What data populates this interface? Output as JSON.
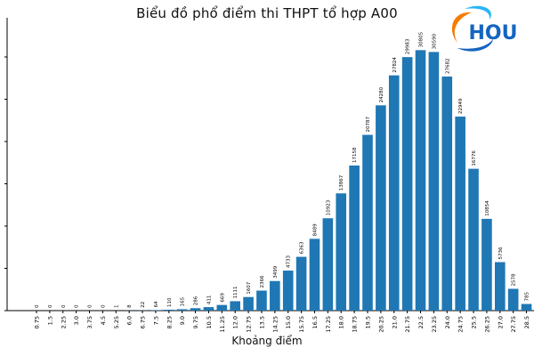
{
  "chart_data": {
    "type": "bar",
    "title": "Biểu đồ phổ điểm thi THPT tổ hợp A00",
    "xlabel": "Khoảng điểm",
    "ylabel": "",
    "categories": [
      "0.75",
      "1.5",
      "2.25",
      "3.0",
      "3.75",
      "4.5",
      "5.25",
      "6.0",
      "6.75",
      "7.5",
      "8.25",
      "9.0",
      "9.75",
      "10.5",
      "11.25",
      "12.0",
      "12.75",
      "13.5",
      "14.25",
      "15.0",
      "15.75",
      "16.5",
      "17.25",
      "18.0",
      "18.75",
      "19.5",
      "20.25",
      "21.0",
      "21.75",
      "22.5",
      "23.25",
      "24.0",
      "24.75",
      "25.5",
      "26.25",
      "27.0",
      "27.75",
      "28.5"
    ],
    "values": [
      0,
      0,
      0,
      0,
      0,
      0,
      1,
      8,
      22,
      64,
      110,
      165,
      286,
      411,
      669,
      1111,
      1607,
      2366,
      3499,
      4733,
      6363,
      8489,
      10923,
      13867,
      17158,
      20787,
      24280,
      27824,
      29983,
      30805,
      30590,
      27682,
      22949,
      16776,
      10854,
      5736,
      2578,
      785
    ],
    "ylim": [
      0,
      34000
    ],
    "bar_color": "#1f77b4",
    "grid": false,
    "legend": "none"
  },
  "logo": {
    "text": "HOU",
    "colors": {
      "blue": "#1565c0",
      "orange": "#f57c00",
      "light_blue": "#29b6f6"
    }
  }
}
